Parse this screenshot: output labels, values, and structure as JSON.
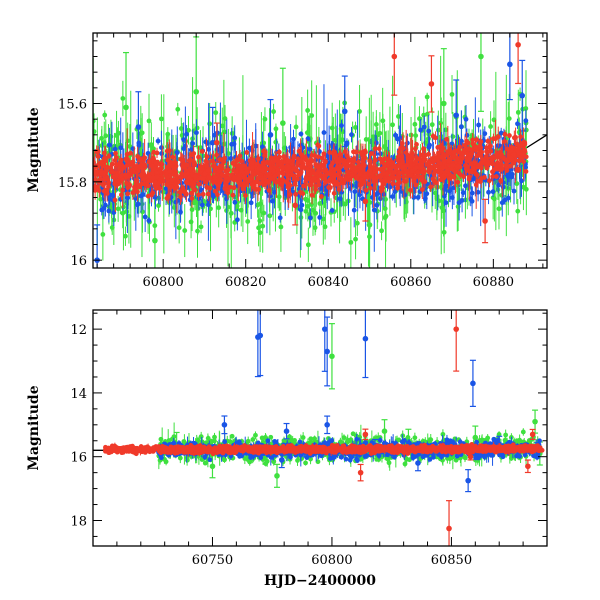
{
  "chart_data": [
    {
      "type": "scatter",
      "title": "",
      "xlabel": "",
      "ylabel": "Magnitude",
      "xlim": [
        60783,
        60893
      ],
      "ylim": [
        15.42,
        16.02
      ],
      "y_inverted": true,
      "grid": false,
      "x_ticks": [
        60800,
        60820,
        60840,
        60860,
        60880
      ],
      "y_ticks": [
        15.6,
        15.8,
        16
      ],
      "y_tick_labels": [
        "15.6",
        "15.8",
        "16"
      ],
      "colors": {
        "red": "#f03a2a",
        "green": "#3fe03f",
        "blue": "#1a55e6",
        "trend": "#000000"
      },
      "error_bars": true,
      "series": [
        {
          "color_key": "red",
          "baseline": [
            [
              60783,
              15.78
            ],
            [
              60800,
              15.78
            ],
            [
              60820,
              15.78
            ],
            [
              60840,
              15.77
            ],
            [
              60860,
              15.76
            ],
            [
              60880,
              15.74
            ],
            [
              60888,
              15.73
            ]
          ],
          "scatter": 0.025,
          "outliers": [
            [
              60813,
              15.7
            ],
            [
              60832,
              15.86
            ],
            [
              60849,
              15.85
            ],
            [
              60856,
              15.48
            ],
            [
              60865,
              15.55
            ],
            [
              60878,
              15.9
            ],
            [
              60886,
              15.45
            ]
          ]
        },
        {
          "color_key": "green",
          "baseline": [
            [
              60783,
              15.78
            ],
            [
              60800,
              15.77
            ],
            [
              60820,
              15.78
            ],
            [
              60840,
              15.77
            ],
            [
              60860,
              15.76
            ],
            [
              60888,
              15.74
            ]
          ],
          "scatter": 0.07,
          "outliers": [
            [
              60791,
              15.61
            ],
            [
              60798,
              15.95
            ],
            [
              60808,
              15.57
            ],
            [
              60829,
              15.65
            ],
            [
              60850,
              15.91
            ],
            [
              60868,
              15.6
            ],
            [
              60877,
              15.48
            ]
          ]
        },
        {
          "color_key": "blue",
          "baseline": [
            [
              60783,
              15.8
            ],
            [
              60800,
              15.79
            ],
            [
              60820,
              15.79
            ],
            [
              60840,
              15.78
            ],
            [
              60860,
              15.77
            ],
            [
              60888,
              15.74
            ]
          ],
          "scatter": 0.045,
          "outliers": [
            [
              60784,
              16.0
            ],
            [
              60794,
              15.66
            ],
            [
              60812,
              15.7
            ],
            [
              60826,
              15.68
            ],
            [
              60844,
              15.62
            ],
            [
              60871,
              15.63
            ],
            [
              60884,
              15.5
            ],
            [
              60887,
              15.58
            ]
          ]
        }
      ],
      "trend_line": [
        [
          60887,
          15.72
        ],
        [
          60893,
          15.68
        ]
      ]
    },
    {
      "type": "scatter",
      "title": "",
      "xlabel": "HJD−2400000",
      "ylabel": "Magnitude",
      "xlim": [
        60700,
        60890
      ],
      "ylim": [
        11.4,
        18.8
      ],
      "y_inverted": true,
      "grid": false,
      "x_ticks": [
        60750,
        60800,
        60850
      ],
      "y_ticks": [
        12,
        14,
        16,
        18
      ],
      "colors": {
        "red": "#f03a2a",
        "green": "#3fe03f",
        "blue": "#1a55e6",
        "trend": "#000000"
      },
      "error_bars": true,
      "series": [
        {
          "color_key": "red",
          "baseline": [
            [
              60705,
              15.78
            ],
            [
              60750,
              15.78
            ],
            [
              60800,
              15.77
            ],
            [
              60850,
              15.76
            ],
            [
              60888,
              15.74
            ]
          ],
          "scatter": 0.05,
          "outliers": [
            [
              60812,
              16.5
            ],
            [
              60814,
              15.3
            ],
            [
              60849,
              18.25
            ],
            [
              60852,
              12.0
            ],
            [
              60858,
              16.0
            ],
            [
              60882,
              16.3
            ],
            [
              60884,
              15.3
            ]
          ]
        },
        {
          "color_key": "green",
          "baseline": [
            [
              60727,
              15.78
            ],
            [
              60750,
              15.77
            ],
            [
              60800,
              15.77
            ],
            [
              60850,
              15.76
            ],
            [
              60888,
              15.74
            ]
          ],
          "scatter": 0.18,
          "outliers": [
            [
              60735,
              15.6
            ],
            [
              60750,
              16.3
            ],
            [
              60777,
              16.6
            ],
            [
              60800,
              12.85
            ],
            [
              60822,
              15.2
            ],
            [
              60832,
              15.5
            ],
            [
              60860,
              15.4
            ],
            [
              60885,
              14.9
            ],
            [
              60887,
              15.9
            ]
          ]
        },
        {
          "color_key": "blue",
          "baseline": [
            [
              60727,
              15.8
            ],
            [
              60750,
              15.79
            ],
            [
              60800,
              15.78
            ],
            [
              60850,
              15.77
            ],
            [
              60888,
              15.75
            ]
          ],
          "scatter": 0.12,
          "outliers": [
            [
              60755,
              15.0
            ],
            [
              60769,
              12.25
            ],
            [
              60770,
              12.2
            ],
            [
              60779,
              16.1
            ],
            [
              60781,
              15.2
            ],
            [
              60797,
              12.0
            ],
            [
              60798,
              12.7
            ],
            [
              60798,
              15.0
            ],
            [
              60814,
              12.3
            ],
            [
              60818,
              15.7
            ],
            [
              60836,
              16.2
            ],
            [
              60857,
              16.75
            ],
            [
              60859,
              13.7
            ],
            [
              60870,
              15.6
            ],
            [
              60886,
              15.8
            ]
          ]
        }
      ],
      "trend_line": [
        [
          60700,
          15.8
        ],
        [
          60727,
          15.8
        ]
      ]
    }
  ]
}
